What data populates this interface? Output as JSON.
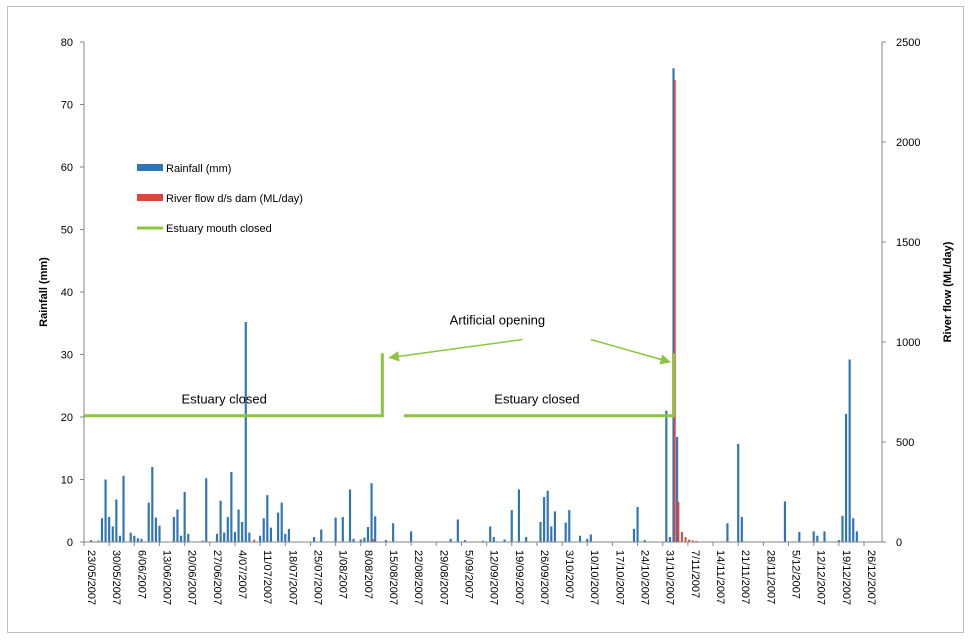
{
  "chart_data": {
    "type": "bar",
    "x_type": "date",
    "x_range": [
      "2007-05-23",
      "2007-12-31"
    ],
    "x_tick_labels": [
      "23/05/2007",
      "30/05/2007",
      "6/06/2007",
      "13/06/2007",
      "20/06/2007",
      "27/06/2007",
      "4/07/2007",
      "11/07/2007",
      "18/07/2007",
      "25/07/2007",
      "1/08/2007",
      "8/08/2007",
      "15/08/2007",
      "22/08/2007",
      "29/08/2007",
      "5/09/2007",
      "12/09/2007",
      "19/09/2007",
      "26/09/2007",
      "3/10/2007",
      "10/10/2007",
      "17/10/2007",
      "24/10/2007",
      "31/10/2007",
      "7/11/2007",
      "14/11/2007",
      "21/11/2007",
      "28/11/2007",
      "5/12/2007",
      "12/12/2007",
      "19/12/2007",
      "26/12/2007"
    ],
    "ylabel": "Rainfall (mm)",
    "ylim": [
      0,
      80
    ],
    "y_ticks": [
      "0",
      "10",
      "20",
      "30",
      "40",
      "50",
      "60",
      "70",
      "80"
    ],
    "y2label": "River flow (ML/day)",
    "y2lim": [
      0,
      2500
    ],
    "y2_ticks": [
      "0",
      "500",
      "1000",
      "1500",
      "2000",
      "2500"
    ],
    "grid": false,
    "legend_position": "upper-left",
    "legend": [
      {
        "label": "Rainfall (mm)",
        "color": "#2e75b6",
        "kind": "bar"
      },
      {
        "label": "River flow d/s dam (ML/day)",
        "color": "#e0443c",
        "kind": "bar"
      },
      {
        "label": "Estuary mouth closed",
        "color": "#8cc63f",
        "kind": "line"
      }
    ],
    "series": [
      {
        "name": "Rainfall (mm)",
        "color": "#2e75b6",
        "axis": "left",
        "points": [
          [
            "2007-05-25",
            0.3
          ],
          [
            "2007-05-27",
            0.2
          ],
          [
            "2007-05-28",
            3.8
          ],
          [
            "2007-05-29",
            10
          ],
          [
            "2007-05-30",
            4
          ],
          [
            "2007-05-31",
            2.5
          ],
          [
            "2007-06-01",
            6.8
          ],
          [
            "2007-06-02",
            1
          ],
          [
            "2007-06-03",
            10.6
          ],
          [
            "2007-06-05",
            1.5
          ],
          [
            "2007-06-06",
            1
          ],
          [
            "2007-06-07",
            0.6
          ],
          [
            "2007-06-08",
            0.5
          ],
          [
            "2007-06-10",
            6.3
          ],
          [
            "2007-06-11",
            12
          ],
          [
            "2007-06-12",
            3.9
          ],
          [
            "2007-06-13",
            2.6
          ],
          [
            "2007-06-17",
            4
          ],
          [
            "2007-06-18",
            5.2
          ],
          [
            "2007-06-19",
            1
          ],
          [
            "2007-06-20",
            8
          ],
          [
            "2007-06-21",
            1.3
          ],
          [
            "2007-06-25",
            0.2
          ],
          [
            "2007-06-26",
            10.2
          ],
          [
            "2007-06-29",
            1.3
          ],
          [
            "2007-06-30",
            6.6
          ],
          [
            "2007-07-01",
            1.5
          ],
          [
            "2007-07-02",
            4
          ],
          [
            "2007-07-03",
            11.2
          ],
          [
            "2007-07-04",
            1.6
          ],
          [
            "2007-07-05",
            5.2
          ],
          [
            "2007-07-06",
            3.2
          ],
          [
            "2007-07-07",
            35.2
          ],
          [
            "2007-07-08",
            1.5
          ],
          [
            "2007-07-11",
            1
          ],
          [
            "2007-07-12",
            3.8
          ],
          [
            "2007-07-13",
            7.5
          ],
          [
            "2007-07-14",
            2.3
          ],
          [
            "2007-07-16",
            4.7
          ],
          [
            "2007-07-17",
            6.3
          ],
          [
            "2007-07-18",
            1.3
          ],
          [
            "2007-07-19",
            2.1
          ],
          [
            "2007-07-26",
            0.8
          ],
          [
            "2007-07-28",
            2
          ],
          [
            "2007-08-01",
            3.9
          ],
          [
            "2007-08-03",
            4
          ],
          [
            "2007-08-05",
            8.4
          ],
          [
            "2007-08-06",
            0.5
          ],
          [
            "2007-08-08",
            0.4
          ],
          [
            "2007-08-09",
            0.7
          ],
          [
            "2007-08-10",
            2.4
          ],
          [
            "2007-08-11",
            9.4
          ],
          [
            "2007-08-12",
            4.1
          ],
          [
            "2007-08-15",
            0.3
          ],
          [
            "2007-08-17",
            3
          ],
          [
            "2007-08-22",
            1.7
          ],
          [
            "2007-09-02",
            0.5
          ],
          [
            "2007-09-04",
            3.6
          ],
          [
            "2007-09-06",
            0.3
          ],
          [
            "2007-09-11",
            0.2
          ],
          [
            "2007-09-13",
            2.5
          ],
          [
            "2007-09-14",
            0.8
          ],
          [
            "2007-09-17",
            0.4
          ],
          [
            "2007-09-19",
            5.1
          ],
          [
            "2007-09-21",
            8.4
          ],
          [
            "2007-09-23",
            0.8
          ],
          [
            "2007-09-27",
            3.2
          ],
          [
            "2007-09-28",
            7.2
          ],
          [
            "2007-09-29",
            8.2
          ],
          [
            "2007-09-30",
            2.5
          ],
          [
            "2007-10-01",
            4.9
          ],
          [
            "2007-10-04",
            3.1
          ],
          [
            "2007-10-05",
            5.1
          ],
          [
            "2007-10-08",
            1
          ],
          [
            "2007-10-10",
            0.5
          ],
          [
            "2007-10-11",
            1.2
          ],
          [
            "2007-10-23",
            2.1
          ],
          [
            "2007-10-24",
            5.6
          ],
          [
            "2007-10-26",
            0.3
          ],
          [
            "2007-11-01",
            21
          ],
          [
            "2007-11-02",
            0.8
          ],
          [
            "2007-11-03",
            75.8
          ],
          [
            "2007-11-04",
            16.8
          ],
          [
            "2007-11-18",
            3
          ],
          [
            "2007-11-21",
            15.7
          ],
          [
            "2007-11-22",
            4
          ],
          [
            "2007-12-04",
            6.5
          ],
          [
            "2007-12-08",
            1.6
          ],
          [
            "2007-12-12",
            1.7
          ],
          [
            "2007-12-13",
            1
          ],
          [
            "2007-12-15",
            1.7
          ],
          [
            "2007-12-19",
            0.3
          ],
          [
            "2007-12-20",
            4.2
          ],
          [
            "2007-12-21",
            20.5
          ],
          [
            "2007-12-22",
            29.2
          ],
          [
            "2007-12-23",
            3.8
          ],
          [
            "2007-12-24",
            1.7
          ]
        ]
      },
      {
        "name": "River flow d/s dam (ML/day)",
        "color": "#e0443c",
        "axis": "right",
        "points": [
          [
            "2007-07-09",
            12
          ],
          [
            "2007-08-11",
            15
          ],
          [
            "2007-11-03",
            2310
          ],
          [
            "2007-11-04",
            200
          ],
          [
            "2007-11-05",
            50
          ],
          [
            "2007-11-06",
            25
          ],
          [
            "2007-11-07",
            12
          ],
          [
            "2007-11-08",
            8
          ],
          [
            "2007-11-09",
            5
          ]
        ]
      }
    ],
    "lines": [
      {
        "name": "Estuary mouth closed",
        "color": "#8cc63f",
        "axis": "left",
        "segments": [
          [
            [
              "2007-05-23",
              20.2
            ],
            [
              "2007-08-14",
              20.2
            ],
            [
              "2007-08-14",
              30.2
            ]
          ],
          [
            [
              "2007-08-20",
              20.2
            ],
            [
              "2007-11-03",
              20.2
            ],
            [
              "2007-11-03",
              30.2
            ]
          ]
        ]
      }
    ],
    "annotations": [
      {
        "text": "Estuary closed",
        "x": "2007-07-01",
        "y": 22.2
      },
      {
        "text": "Estuary closed",
        "x": "2007-09-26",
        "y": 22.2
      },
      {
        "text": "Artificial opening",
        "x": "2007-09-15",
        "y": 34.8,
        "arrows_to": [
          [
            "2007-08-16",
            29.5
          ],
          [
            "2007-11-02",
            28.8
          ]
        ],
        "arrows_from": [
          [
            "2007-09-22",
            32.4
          ],
          [
            "2007-10-11",
            32.4
          ]
        ]
      }
    ]
  }
}
